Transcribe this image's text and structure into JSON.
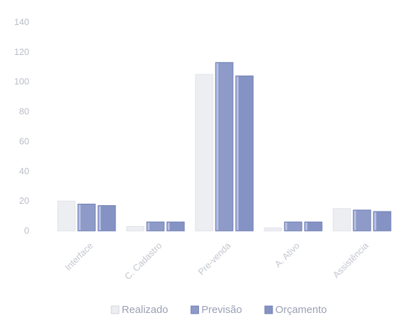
{
  "chart_data": {
    "type": "bar",
    "categories": [
      "Interface",
      "C. Cadastro",
      "Pre-venda",
      "A. Ativo",
      "Assistência"
    ],
    "series": [
      {
        "name": "Realizado",
        "values": [
          20,
          3,
          105,
          2,
          15
        ],
        "color": "#eceef2"
      },
      {
        "name": "Previsão",
        "values": [
          18,
          6,
          113,
          6,
          14
        ],
        "color": "#8e9ac8"
      },
      {
        "name": "Orçamento",
        "values": [
          17,
          6,
          104,
          6,
          13
        ],
        "color": "#8593c4"
      }
    ],
    "y_ticks": [
      "0",
      "20",
      "40",
      "60",
      "80",
      "100",
      "120",
      "140"
    ],
    "ylim": [
      0,
      140
    ],
    "grid": false,
    "legend_position": "bottom",
    "title": "",
    "xlabel": "",
    "ylabel": ""
  }
}
